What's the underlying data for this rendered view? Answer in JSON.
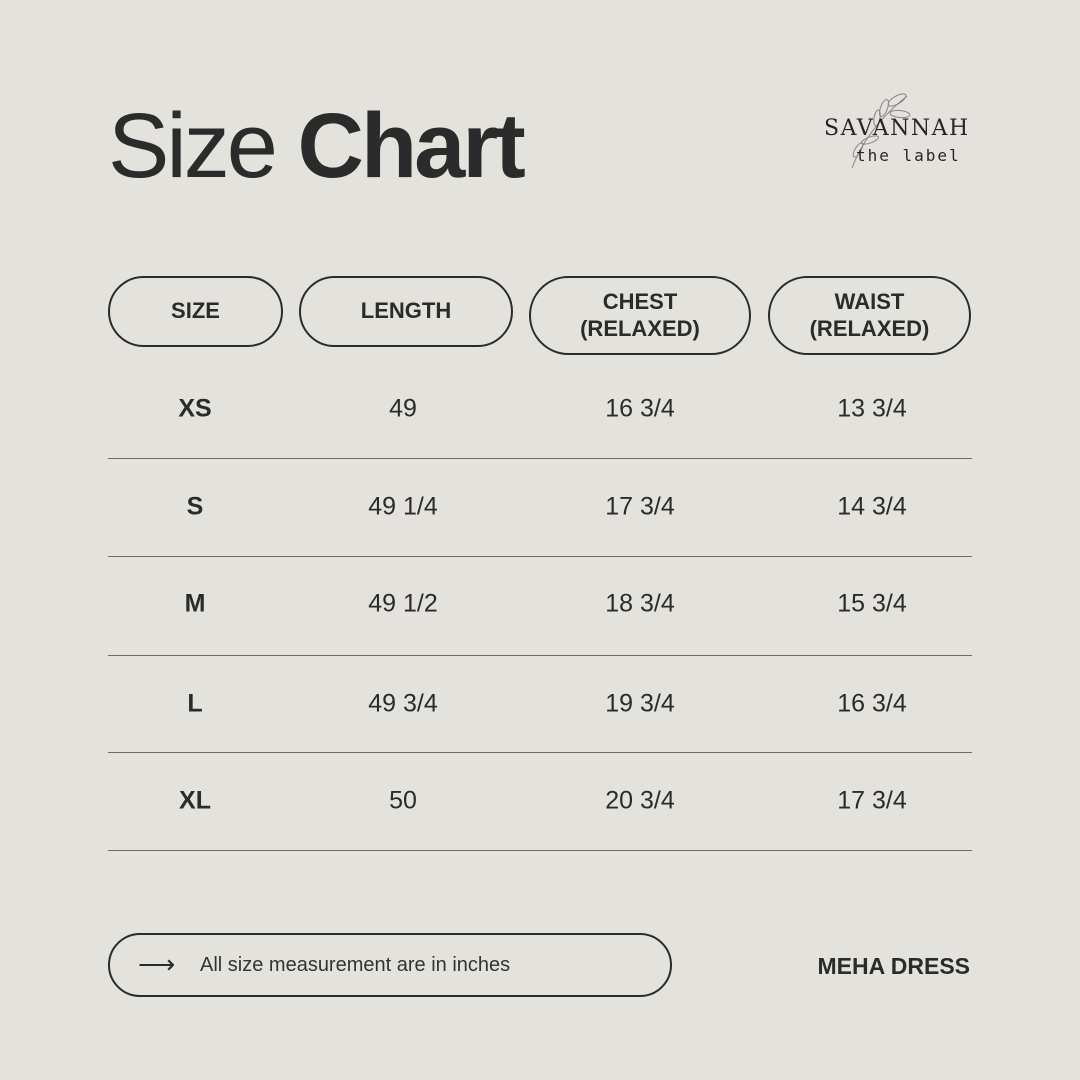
{
  "title": {
    "light": "Size",
    "bold": "Chart"
  },
  "logo": {
    "name": "SAVANNAH",
    "sub": "the label"
  },
  "headers": [
    "SIZE",
    "LENGTH",
    "CHEST\n(RELAXED)",
    "WAIST\n(RELAXED)"
  ],
  "rows": [
    {
      "size": "XS",
      "length": "49",
      "chest": "16 3/4",
      "waist": "13 3/4"
    },
    {
      "size": "S",
      "length": "49 1/4",
      "chest": "17 3/4",
      "waist": "14 3/4"
    },
    {
      "size": "M",
      "length": "49 1/2",
      "chest": "18 3/4",
      "waist": "15 3/4"
    },
    {
      "size": "L",
      "length": "49 3/4",
      "chest": "19 3/4",
      "waist": "16 3/4"
    },
    {
      "size": "XL",
      "length": "50",
      "chest": "20 3/4",
      "waist": "17 3/4"
    }
  ],
  "footer": {
    "icon": "arrow-right-icon",
    "note": "All size measurement are in inches",
    "product": "MEHA DRESS"
  },
  "colors": {
    "background": "#e3e2dd",
    "text": "#2b2b2b"
  }
}
